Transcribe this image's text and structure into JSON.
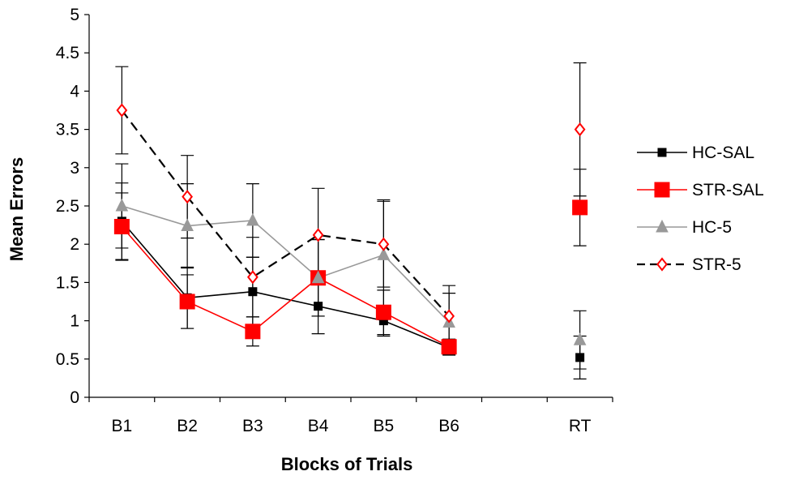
{
  "chart_data": {
    "type": "line",
    "xlabel": "Blocks of Trials",
    "ylabel": "Mean Errors",
    "ylim": [
      0,
      5
    ],
    "yticks": [
      "0",
      "0.5",
      "1",
      "1.5",
      "2",
      "2.5",
      "3",
      "3.5",
      "4",
      "4.5",
      "5"
    ],
    "categories": [
      "B1",
      "B2",
      "B3",
      "B4",
      "B5",
      "B6",
      "",
      "RT"
    ],
    "grid": false,
    "legend_position": "right",
    "series": [
      {
        "name": "HC-SAL",
        "values": [
          2.3,
          1.3,
          1.38,
          1.19,
          1.0,
          0.65,
          null,
          0.52
        ],
        "errors": [
          0.5,
          0.4,
          0.45,
          0.36,
          0.2,
          0.1,
          null,
          0.28
        ],
        "color": "#000000",
        "marker": "square",
        "marker_size": "small",
        "dash": "solid",
        "connect_upto": 6
      },
      {
        "name": "STR-SAL",
        "values": [
          2.23,
          1.25,
          0.86,
          1.56,
          1.11,
          0.66,
          null,
          2.48
        ],
        "errors": [
          0.44,
          0.35,
          0.19,
          0.5,
          0.29,
          0.1,
          null,
          0.5
        ],
        "color": "#ff0000",
        "marker": "square",
        "marker_size": "large",
        "dash": "solid",
        "connect_upto": 6
      },
      {
        "name": "HC-5",
        "values": [
          2.5,
          2.24,
          2.31,
          1.56,
          1.86,
          0.98,
          null,
          0.75
        ],
        "errors": [
          0.55,
          0.55,
          0.48,
          0.5,
          0.72,
          0.38,
          null,
          0.38
        ],
        "color": "#999999",
        "marker": "triangle",
        "marker_size": "medium",
        "dash": "solid",
        "connect_upto": 6
      },
      {
        "name": "STR-5",
        "values": [
          3.75,
          2.62,
          1.57,
          2.12,
          2.0,
          1.06,
          null,
          3.5
        ],
        "errors": [
          0.57,
          0.54,
          0.52,
          0.61,
          0.56,
          0.4,
          null,
          0.87
        ],
        "color": "#000000",
        "marker": "diamond",
        "marker_color": "#ff0000",
        "marker_size": "medium",
        "dash": "dashed",
        "connect_upto": 6
      }
    ]
  }
}
